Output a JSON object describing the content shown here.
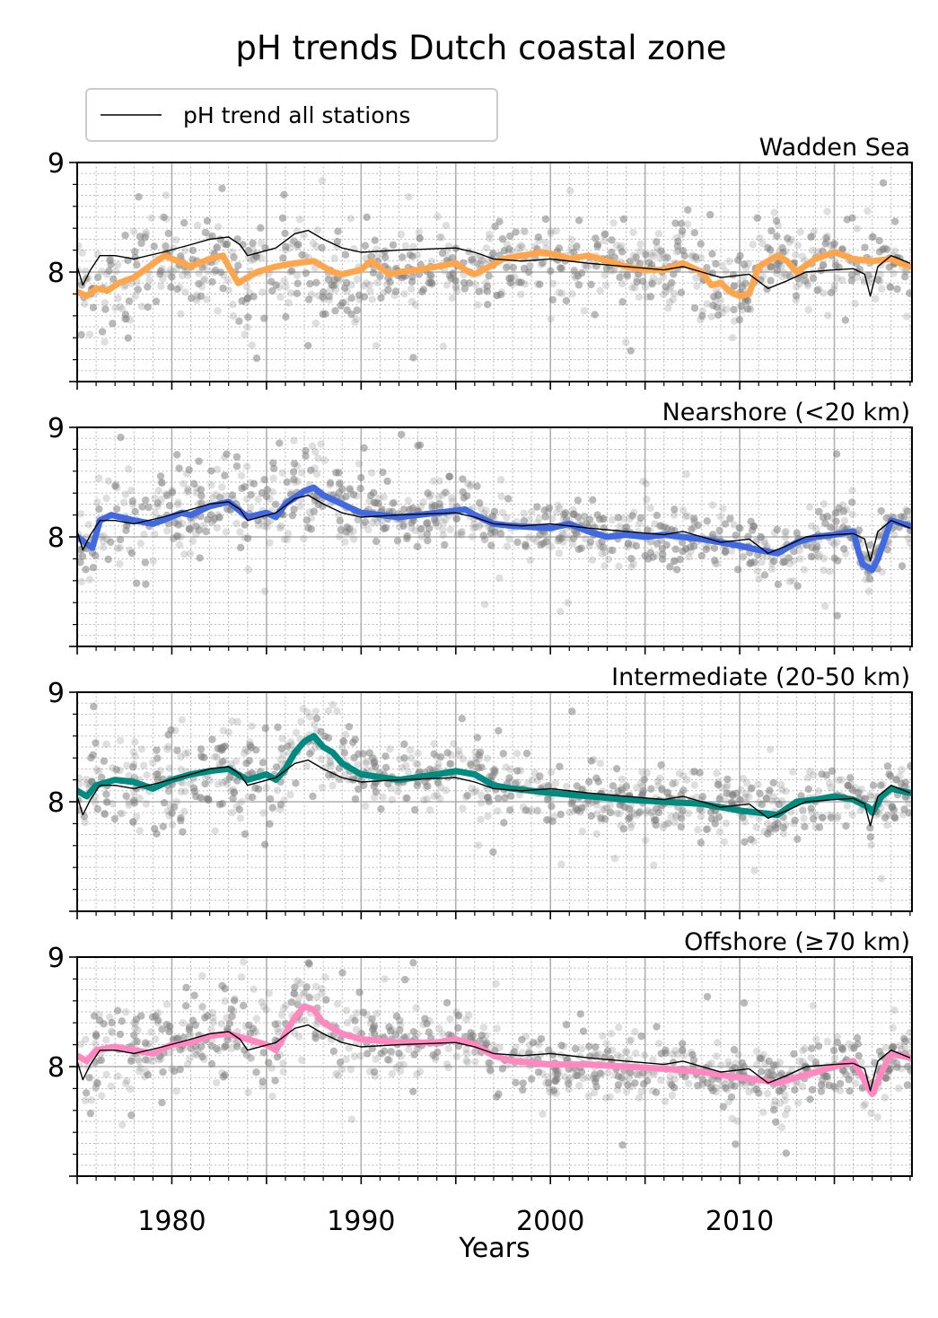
{
  "chart_data": {
    "type": "line",
    "title": "pH trends Dutch coastal zone",
    "xlabel": "Years",
    "ylabel": "",
    "xlim": [
      1975,
      2019.1
    ],
    "ylim": [
      7,
      9
    ],
    "x_ticks": [
      1980,
      1990,
      2000,
      2010
    ],
    "y_ticks": [
      8,
      9
    ],
    "reference_line_y": 8,
    "grid": "major and minor",
    "legend": {
      "placement": "top-left",
      "entries": [
        {
          "label": "pH trend all stations",
          "color": "#000000"
        }
      ]
    },
    "scatter_color": "#808080",
    "all_stations_trend": {
      "name": "pH trend all stations",
      "color": "#000000",
      "x": [
        1975.0,
        1975.3,
        1975.7,
        1976.2,
        1977.0,
        1978.0,
        1979.5,
        1981.0,
        1982.0,
        1983.0,
        1983.6,
        1984.0,
        1985.5,
        1986.5,
        1987.2,
        1988.0,
        1989.0,
        1990.0,
        1992.0,
        1995.0,
        1996.0,
        1997.0,
        1998.5,
        2000.0,
        2002.0,
        2004.0,
        2006.0,
        2007.0,
        2008.0,
        2009.0,
        2010.5,
        2011.5,
        2012.5,
        2013.5,
        2015.0,
        2016.0,
        2016.6,
        2016.9,
        2017.3,
        2018.0,
        2019.0
      ],
      "y": [
        8.05,
        7.88,
        8.02,
        8.15,
        8.15,
        8.12,
        8.18,
        8.25,
        8.3,
        8.32,
        8.25,
        8.15,
        8.22,
        8.35,
        8.38,
        8.3,
        8.22,
        8.18,
        8.2,
        8.22,
        8.18,
        8.12,
        8.1,
        8.12,
        8.08,
        8.05,
        8.02,
        8.05,
        8.0,
        7.95,
        7.98,
        7.85,
        7.92,
        8.0,
        8.02,
        8.03,
        7.98,
        7.78,
        8.05,
        8.15,
        8.08
      ]
    },
    "panels": [
      {
        "name": "Wadden Sea",
        "color": "#ffa64d",
        "x": [
          1975.0,
          1975.5,
          1976.0,
          1976.6,
          1977.2,
          1978.0,
          1978.8,
          1979.6,
          1980.3,
          1981.0,
          1982.0,
          1982.7,
          1983.0,
          1983.5,
          1984.5,
          1985.5,
          1986.5,
          1987.5,
          1988.5,
          1989.0,
          1990.0,
          1990.5,
          1991.5,
          1992.0,
          1993.0,
          1994.0,
          1995.0,
          1995.5,
          1996.0,
          1996.8,
          1997.5,
          1998.5,
          1999.5,
          2000.5,
          2001.0,
          2002.0,
          2003.0,
          2004.0,
          2005.0,
          2006.0,
          2007.0,
          2008.0,
          2008.5,
          2009.0,
          2009.5,
          2010.0,
          2010.5,
          2011.0,
          2012.0,
          2012.5,
          2013.0,
          2014.0,
          2015.0,
          2016.0,
          2017.0,
          2018.0,
          2018.5,
          2019.0
        ],
        "y": [
          7.82,
          7.78,
          7.85,
          7.83,
          7.9,
          7.95,
          8.05,
          8.15,
          8.1,
          8.05,
          8.12,
          8.15,
          8.05,
          7.9,
          8.0,
          8.05,
          8.08,
          8.1,
          8.0,
          7.98,
          8.02,
          8.1,
          7.98,
          8.0,
          8.02,
          8.05,
          8.08,
          8.02,
          7.98,
          8.05,
          8.12,
          8.15,
          8.18,
          8.15,
          8.12,
          8.15,
          8.1,
          8.05,
          8.02,
          8.02,
          8.08,
          8.0,
          7.88,
          7.9,
          7.82,
          7.78,
          7.8,
          8.05,
          8.15,
          8.1,
          8.0,
          8.12,
          8.18,
          8.12,
          8.1,
          8.12,
          8.08,
          8.05
        ]
      },
      {
        "name": "Nearshore (<20 km)",
        "color": "#4169e1",
        "x": [
          1975.0,
          1975.4,
          1975.8,
          1976.2,
          1976.8,
          1978.0,
          1979.0,
          1979.5,
          1980.5,
          1981.0,
          1982.0,
          1983.0,
          1984.0,
          1985.0,
          1985.5,
          1986.0,
          1987.0,
          1987.5,
          1988.0,
          1989.0,
          1990.0,
          1992.0,
          1994.0,
          1995.5,
          1996.0,
          1997.0,
          1998.0,
          2000.0,
          2001.0,
          2002.0,
          2003.0,
          2004.0,
          2005.0,
          2006.0,
          2007.0,
          2008.0,
          2009.0,
          2010.0,
          2011.0,
          2012.0,
          2013.0,
          2014.0,
          2015.0,
          2016.0,
          2016.3,
          2016.5,
          2016.8,
          2017.0,
          2017.3,
          2018.0,
          2019.0
        ],
        "y": [
          8.0,
          7.95,
          7.9,
          8.15,
          8.2,
          8.15,
          8.12,
          8.15,
          8.22,
          8.2,
          8.28,
          8.32,
          8.18,
          8.22,
          8.18,
          8.3,
          8.42,
          8.45,
          8.38,
          8.3,
          8.22,
          8.18,
          8.22,
          8.25,
          8.2,
          8.12,
          8.1,
          8.08,
          8.12,
          8.05,
          8.0,
          8.02,
          8.0,
          8.02,
          8.0,
          7.98,
          7.95,
          7.92,
          7.88,
          7.85,
          7.95,
          8.0,
          8.02,
          8.05,
          7.85,
          7.75,
          7.72,
          7.7,
          7.8,
          8.15,
          8.1
        ]
      },
      {
        "name": "Intermediate (20-50 km)",
        "color": "#008b80",
        "x": [
          1975.0,
          1975.5,
          1976.0,
          1977.0,
          1978.0,
          1979.0,
          1980.0,
          1981.0,
          1982.0,
          1983.0,
          1984.0,
          1985.0,
          1985.5,
          1986.0,
          1986.5,
          1987.0,
          1987.5,
          1988.0,
          1988.5,
          1989.0,
          1990.0,
          1992.0,
          1994.0,
          1995.0,
          1996.0,
          1997.0,
          1998.0,
          2000.0,
          2002.0,
          2004.0,
          2006.0,
          2008.0,
          2009.0,
          2010.0,
          2011.0,
          2012.0,
          2013.0,
          2014.0,
          2015.0,
          2016.0,
          2016.8,
          2017.0,
          2017.5,
          2018.0,
          2019.0
        ],
        "y": [
          8.1,
          8.05,
          8.15,
          8.2,
          8.18,
          8.12,
          8.2,
          8.25,
          8.28,
          8.3,
          8.2,
          8.25,
          8.2,
          8.3,
          8.45,
          8.55,
          8.6,
          8.5,
          8.45,
          8.35,
          8.25,
          8.2,
          8.25,
          8.28,
          8.25,
          8.15,
          8.12,
          8.08,
          8.05,
          8.02,
          8.0,
          7.98,
          7.95,
          7.92,
          7.9,
          7.88,
          8.0,
          8.02,
          8.05,
          8.02,
          7.95,
          7.9,
          8.05,
          8.12,
          8.08
        ]
      },
      {
        "name": "Offshore (≥70 km)",
        "color": "#ff88c0",
        "x": [
          1975.0,
          1975.5,
          1976.0,
          1977.0,
          1978.0,
          1979.0,
          1980.0,
          1981.0,
          1982.0,
          1983.0,
          1984.0,
          1985.0,
          1985.5,
          1986.0,
          1986.5,
          1987.0,
          1987.5,
          1988.0,
          1989.0,
          1990.0,
          1992.0,
          1994.0,
          1995.0,
          1996.0,
          1997.0,
          1998.0,
          2000.0,
          2002.0,
          2004.0,
          2006.0,
          2008.0,
          2010.0,
          2011.0,
          2012.0,
          2013.0,
          2014.0,
          2015.0,
          2016.0,
          2016.5,
          2016.8,
          2017.0,
          2017.5,
          2018.0,
          2019.0
        ],
        "y": [
          8.1,
          8.05,
          8.15,
          8.18,
          8.15,
          8.12,
          8.2,
          8.22,
          8.28,
          8.3,
          8.25,
          8.2,
          8.15,
          8.3,
          8.45,
          8.55,
          8.52,
          8.4,
          8.3,
          8.25,
          8.22,
          8.22,
          8.25,
          8.2,
          8.1,
          8.05,
          8.02,
          8.02,
          8.0,
          7.98,
          7.95,
          7.9,
          7.88,
          7.85,
          7.9,
          7.95,
          8.0,
          8.05,
          7.9,
          7.8,
          7.75,
          7.95,
          8.12,
          8.08
        ]
      }
    ]
  }
}
